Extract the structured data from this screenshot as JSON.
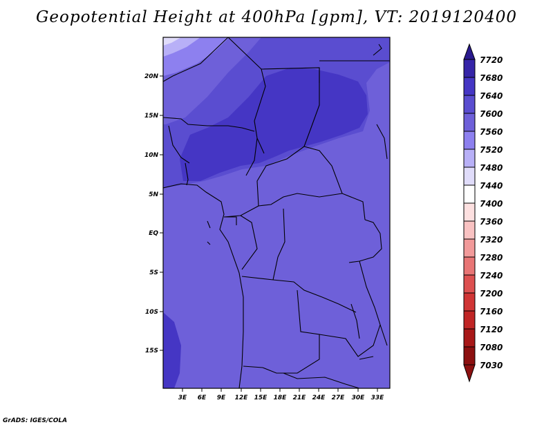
{
  "title": "Geopotential Height at 400hPa [gpm], VT: 2019120400",
  "credit": "GrADS: IGES/COLA",
  "map": {
    "lat_ticks": [
      "20N",
      "15N",
      "10N",
      "5N",
      "EQ",
      "5S",
      "10S",
      "15S"
    ],
    "lon_ticks": [
      "3E",
      "6E",
      "9E",
      "12E",
      "15E",
      "18E",
      "21E",
      "24E",
      "27E",
      "30E",
      "33E"
    ],
    "fill_colors": {
      "c7520": "#6e60d9",
      "c7560": "#5a4dd0",
      "c7600": "#4536c4",
      "c7480": "#8d80ef",
      "c7440": "#b8b0f7",
      "c7400": "#e0dcfa"
    }
  },
  "colorbar": {
    "levels": [
      "7720",
      "7680",
      "7640",
      "7600",
      "7560",
      "7520",
      "7480",
      "7440",
      "7400",
      "7360",
      "7320",
      "7280",
      "7240",
      "7200",
      "7160",
      "7120",
      "7080",
      "7030"
    ],
    "colors": [
      "#2a1a8e",
      "#3625a8",
      "#4536c4",
      "#5a4dd0",
      "#6e60d9",
      "#8d80ef",
      "#b8b0f7",
      "#e0dcfa",
      "#ffffff",
      "#fde0e0",
      "#f9c2c2",
      "#f29a9a",
      "#e87575",
      "#dd5050",
      "#d03535",
      "#c02525",
      "#a81818",
      "#8c1010"
    ]
  }
}
